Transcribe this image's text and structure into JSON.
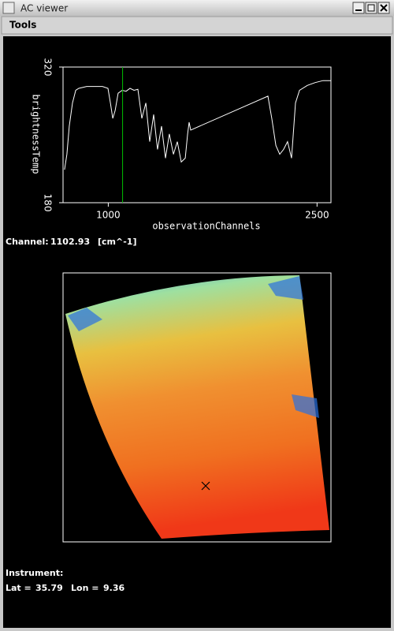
{
  "window": {
    "title": "AC viewer"
  },
  "menu": {
    "items": [
      "Tools"
    ]
  },
  "chart_data": {
    "type": "line",
    "x_label": "observationChannels",
    "y_label": "brightnessTemp",
    "x": [
      686,
      703,
      720,
      743,
      766,
      788,
      845,
      901,
      958,
      998,
      1015,
      1032,
      1049,
      1071,
      1100,
      1128,
      1156,
      1185,
      1213,
      1241,
      1270,
      1298,
      1326,
      1354,
      1383,
      1411,
      1439,
      1468,
      1496,
      1524,
      1553,
      1570,
      1581,
      1592,
      2147,
      2175,
      2204,
      2232,
      2260,
      2288,
      2317,
      2345,
      2374,
      2430,
      2487,
      2543,
      2600
    ],
    "values": [
      214,
      230,
      259,
      283,
      296,
      298,
      300,
      300,
      300,
      298,
      283,
      267,
      275,
      293,
      296,
      295,
      298,
      296,
      297,
      267,
      283,
      243,
      271,
      235,
      259,
      226,
      251,
      230,
      243,
      222,
      226,
      251,
      263,
      255,
      290,
      267,
      239,
      230,
      235,
      243,
      226,
      283,
      296,
      301,
      304,
      306,
      306
    ],
    "color": "#ffffff",
    "xlim": [
      675,
      2600
    ],
    "xticks": [
      1000,
      2500
    ],
    "ylim": [
      180,
      320
    ],
    "yticks": [
      180,
      320
    ],
    "cursor_color": "#00c000"
  },
  "channel": {
    "label": "Channel:",
    "value": 1102.93,
    "unit": "[cm^-1]"
  },
  "status": {
    "instrument_label": "Instrument:",
    "lat_label": "Lat =",
    "lat": 35.79,
    "lon_label": "Lon =",
    "lon": 9.36
  }
}
